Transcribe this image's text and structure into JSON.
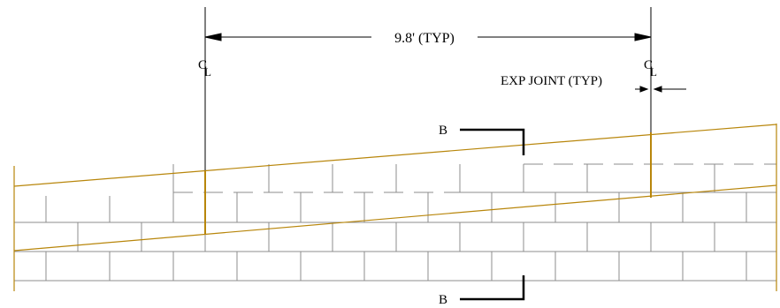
{
  "drawing": {
    "dimension_label": "9.8' (TYP)",
    "exp_joint_label": "EXP JOINT (TYP)",
    "centerline_symbol_left": "C",
    "centerline_subscript_left": "L",
    "centerline_symbol_right": "C",
    "centerline_subscript_right": "L",
    "section_mark_top": "B",
    "section_mark_bottom": "B"
  },
  "colors": {
    "slope_line": "#b8860b",
    "masonry_line": "#8c8c8c",
    "ink": "#000000"
  }
}
